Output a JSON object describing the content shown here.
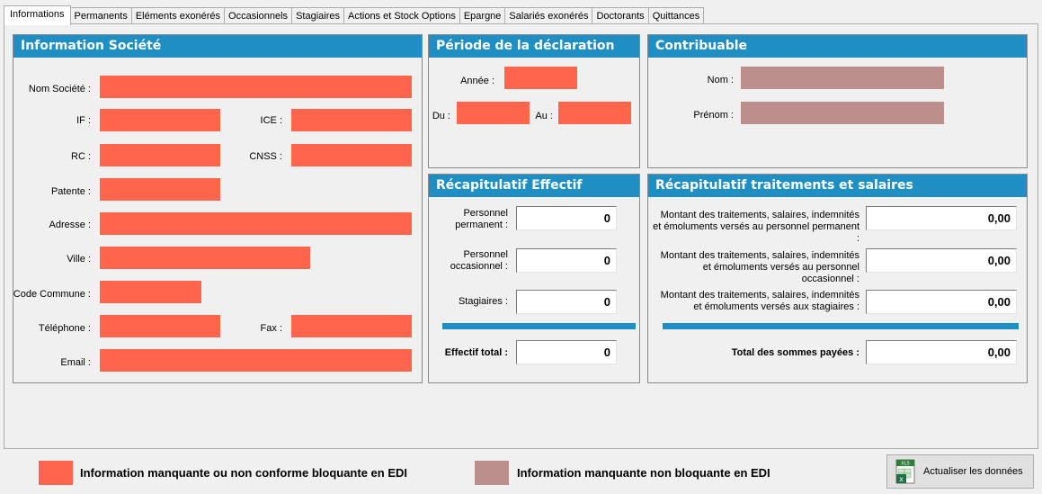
{
  "tabs": [
    "Informations",
    "Permanents",
    "Eléments exonérés",
    "Occasionnels",
    "Stagiaires",
    "Actions et Stock Options",
    "Epargne",
    "Salariés exonérés",
    "Doctorants",
    "Quittances"
  ],
  "societe": {
    "title": "Information Société",
    "nom": "Nom Société :",
    "if": "IF :",
    "ice": "ICE :",
    "rc": "RC :",
    "cnss": "CNSS :",
    "patente": "Patente :",
    "adresse": "Adresse :",
    "ville": "Ville :",
    "code_commune": "Code Commune :",
    "telephone": "Téléphone :",
    "fax": "Fax :",
    "email": "Email :"
  },
  "periode": {
    "title": "Période de la déclaration",
    "annee": "Année :",
    "du": "Du :",
    "au": "Au :"
  },
  "contribuable": {
    "title": "Contribuable",
    "nom": "Nom :",
    "prenom": "Prénom :"
  },
  "effectif": {
    "title": "Récapitulatif Effectif",
    "permanent_label": "Personnel permanent :",
    "permanent_value": "0",
    "occasionnel_label": "Personnel occasionnel :",
    "occasionnel_value": "0",
    "stagiaires_label": "Stagiaires :",
    "stagiaires_value": "0",
    "total_label": "Effectif total :",
    "total_value": "0"
  },
  "salaires": {
    "title": "Récapitulatif traitements et salaires",
    "permanent_label": "Montant des traitements, salaires, indemnités et émoluments versés au personnel permanent :",
    "permanent_value": "0,00",
    "occasionnel_label": "Montant des traitements, salaires, indemnités et émoluments versés au personnel occasionnel :",
    "occasionnel_value": "0,00",
    "stagiaires_label": "Montant des traitements, salaires, indemnités et émoluments versés aux stagiaires :",
    "stagiaires_value": "0,00",
    "total_label": "Total des sommes payées :",
    "total_value": "0,00"
  },
  "legend": {
    "blocking": "Information manquante ou non conforme bloquante en EDI",
    "non_blocking": "Information manquante non bloquante en EDI",
    "blocking_color": "#ff644c",
    "non_blocking_color": "#bc8f8c"
  },
  "actions": {
    "refresh_label": "Actualiser les données",
    "refresh_icon": "xls-icon",
    "xls_text": "XLS"
  },
  "colors": {
    "header_blue": "#1f8ec2"
  }
}
